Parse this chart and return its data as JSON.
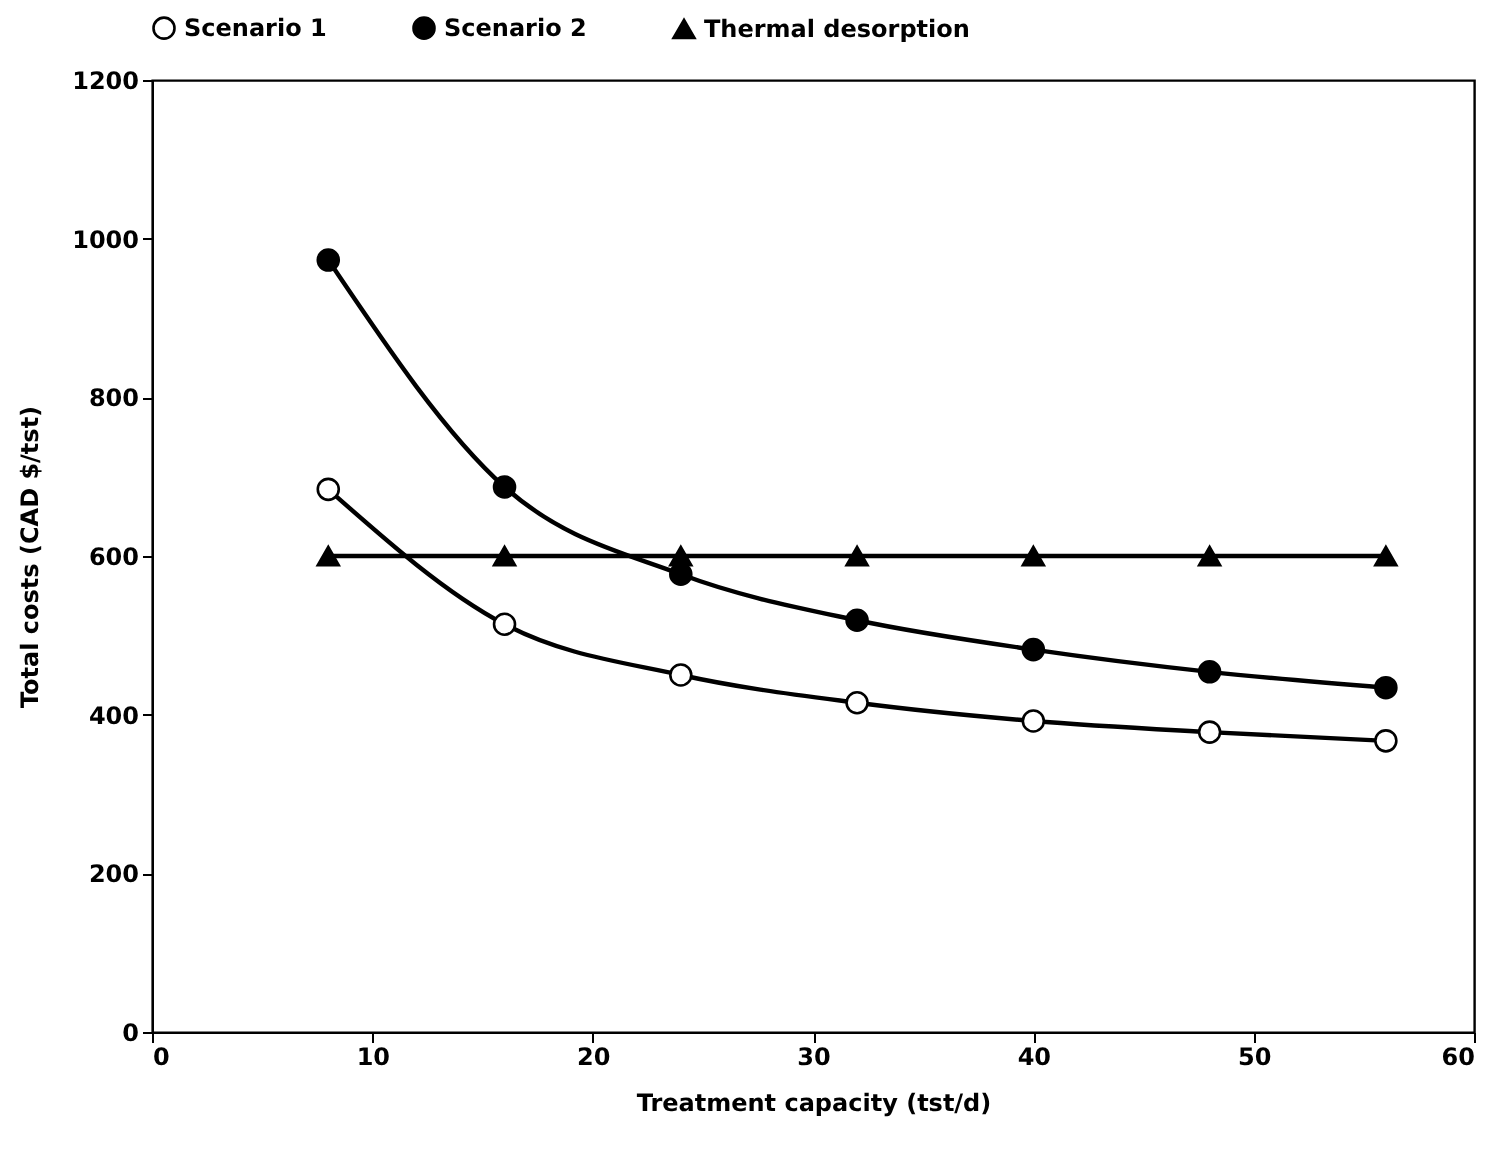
{
  "chart_data": {
    "type": "line",
    "xlabel": "Treatment capacity (tst/d)",
    "ylabel": "Total costs (CAD $/tst)",
    "x": [
      8,
      16,
      24,
      32,
      40,
      48,
      56
    ],
    "series": [
      {
        "name": "Scenario 1",
        "color": "#000000",
        "marker": "circle",
        "colors": [
          "#ffffff",
          "#ffffff",
          "#ffffff",
          "#ffffff",
          "#ffffff",
          "#ffffff",
          "#ffffff"
        ],
        "values": [
          684,
          514,
          450,
          415,
          392,
          378,
          367
        ]
      },
      {
        "name": "Scenario 2",
        "color": "#000000",
        "marker": "circle",
        "values": [
          973,
          687,
          577,
          519,
          482,
          454,
          434
        ]
      },
      {
        "name": "Thermal desorption",
        "color": "#000000",
        "marker": "triangle",
        "values": [
          600,
          600,
          600,
          600,
          600,
          600,
          600
        ]
      }
    ],
    "xlim": [
      0,
      60
    ],
    "xticks": [
      0,
      10,
      20,
      30,
      40,
      50,
      60
    ],
    "ylim": [
      0,
      1200
    ],
    "yticks": [
      0,
      200,
      400,
      600,
      800,
      1000,
      1200
    ],
    "grid": false,
    "legend": "top",
    "line_style": "solid"
  }
}
